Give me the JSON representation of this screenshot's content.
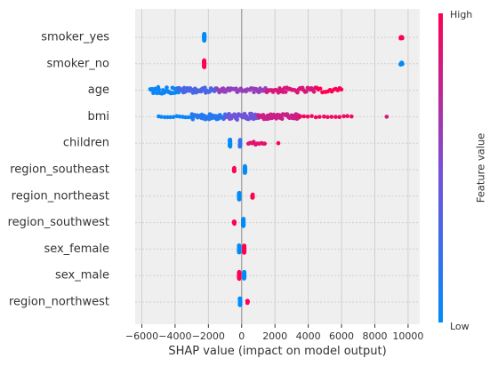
{
  "chart_data": {
    "type": "scatter",
    "subtype": "shap-beeswarm-summary",
    "title": "",
    "xlabel": "SHAP value (impact on model output)",
    "xlim": [
      -6400,
      10700
    ],
    "xticks": [
      -6000,
      -4000,
      -2000,
      0,
      2000,
      4000,
      6000,
      8000,
      10000
    ],
    "grid": true,
    "colors": {
      "low": "#008bfb",
      "high": "#ff0052",
      "background": "#efefef",
      "grid": "#cfcfcf",
      "zero_line": "#9a9a9a"
    },
    "colorbar": {
      "title": "Feature value",
      "high_label": "High",
      "low_label": "Low",
      "placement": "right"
    },
    "features": [
      {
        "name": "smoker_yes",
        "clusters": [
          {
            "x": [
              -2250,
              -2250
            ],
            "spread": 0.28,
            "color": 0.0,
            "n": 40
          },
          {
            "x": [
              9550,
              9650
            ],
            "spread": 0.1,
            "color": 1.0,
            "n": 10
          }
        ]
      },
      {
        "name": "smoker_no",
        "clusters": [
          {
            "x": [
              -2250,
              -2250
            ],
            "spread": 0.28,
            "color": 1.0,
            "n": 40
          },
          {
            "x": [
              9550,
              9650
            ],
            "spread": 0.1,
            "color": 0.0,
            "n": 10
          }
        ]
      },
      {
        "name": "age",
        "clusters": [
          {
            "x": [
              -5500,
              -3800
            ],
            "spread": 0.28,
            "color": 0.05,
            "n": 30
          },
          {
            "x": [
              -3800,
              -1500
            ],
            "spread": 0.22,
            "color": 0.3,
            "n": 40
          },
          {
            "x": [
              -1500,
              1500
            ],
            "spread": 0.18,
            "color": 0.6,
            "n": 40
          },
          {
            "x": [
              1500,
              4500
            ],
            "spread": 0.22,
            "color": 0.85,
            "n": 40
          },
          {
            "x": [
              4500,
              6000
            ],
            "spread": 0.18,
            "color": 1.0,
            "n": 14
          }
        ]
      },
      {
        "name": "bmi",
        "clusters": [
          {
            "x": [
              -5000,
              -3000
            ],
            "spread": 0.06,
            "color": 0.05,
            "n": 12
          },
          {
            "x": [
              -3000,
              -1000
            ],
            "spread": 0.22,
            "color": 0.15,
            "n": 40
          },
          {
            "x": [
              -1000,
              1000
            ],
            "spread": 0.26,
            "color": 0.45,
            "n": 45
          },
          {
            "x": [
              1000,
              3500
            ],
            "spread": 0.22,
            "color": 0.8,
            "n": 45
          },
          {
            "x": [
              3500,
              6600
            ],
            "spread": 0.06,
            "color": 0.95,
            "n": 14
          },
          {
            "x": [
              8700,
              8700
            ],
            "spread": 0.0,
            "color": 0.85,
            "n": 1
          }
        ]
      },
      {
        "name": "children",
        "clusters": [
          {
            "x": [
              -700,
              -700
            ],
            "spread": 0.3,
            "color": 0.0,
            "n": 30
          },
          {
            "x": [
              -100,
              -100
            ],
            "spread": 0.3,
            "color": 0.2,
            "n": 20
          },
          {
            "x": [
              400,
              1400
            ],
            "spread": 0.12,
            "color": 0.9,
            "n": 10
          },
          {
            "x": [
              2200,
              2200
            ],
            "spread": 0.0,
            "color": 1.0,
            "n": 1
          }
        ]
      },
      {
        "name": "region_southeast",
        "clusters": [
          {
            "x": [
              -450,
              -450
            ],
            "spread": 0.16,
            "color": 1.0,
            "n": 10
          },
          {
            "x": [
              200,
              200
            ],
            "spread": 0.3,
            "color": 0.0,
            "n": 30
          }
        ]
      },
      {
        "name": "region_northeast",
        "clusters": [
          {
            "x": [
              -150,
              -150
            ],
            "spread": 0.3,
            "color": 0.0,
            "n": 30
          },
          {
            "x": [
              650,
              650
            ],
            "spread": 0.16,
            "color": 1.0,
            "n": 10
          }
        ]
      },
      {
        "name": "region_southwest",
        "clusters": [
          {
            "x": [
              -450,
              -450
            ],
            "spread": 0.16,
            "color": 1.0,
            "n": 10
          },
          {
            "x": [
              100,
              100
            ],
            "spread": 0.3,
            "color": 0.0,
            "n": 30
          }
        ]
      },
      {
        "name": "sex_female",
        "clusters": [
          {
            "x": [
              -150,
              -150
            ],
            "spread": 0.3,
            "color": 0.0,
            "n": 30
          },
          {
            "x": [
              150,
              150
            ],
            "spread": 0.3,
            "color": 1.0,
            "n": 30
          }
        ]
      },
      {
        "name": "sex_male",
        "clusters": [
          {
            "x": [
              -150,
              -150
            ],
            "spread": 0.3,
            "color": 1.0,
            "n": 30
          },
          {
            "x": [
              150,
              150
            ],
            "spread": 0.3,
            "color": 0.0,
            "n": 30
          }
        ]
      },
      {
        "name": "region_northwest",
        "clusters": [
          {
            "x": [
              -100,
              -100
            ],
            "spread": 0.3,
            "color": 0.0,
            "n": 30
          },
          {
            "x": [
              350,
              350
            ],
            "spread": 0.12,
            "color": 1.0,
            "n": 6
          }
        ]
      }
    ]
  }
}
